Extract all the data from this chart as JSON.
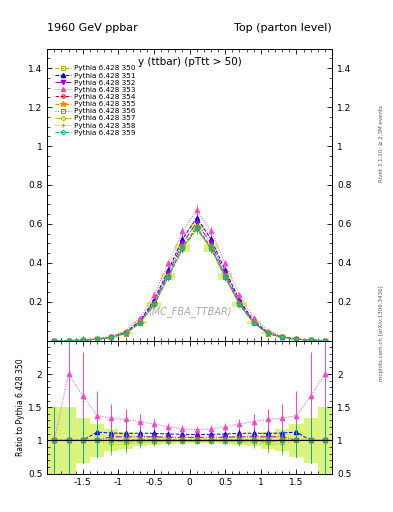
{
  "title_left": "1960 GeV ppbar",
  "title_right": "Top (parton level)",
  "plot_title": "y (ttbar) (pTtt > 50)",
  "watermark": "(MC_FBA_TTBAR)",
  "right_label": "mcplots.cern.ch [arXiv:1306.3436]",
  "rivet_label": "Rivet 3.1.10; ≥ 2.3M events",
  "ylabel_ratio": "Ratio to Pythia 6.428 350",
  "xlim": [
    -2.0,
    2.0
  ],
  "ylim_main": [
    0.0,
    1.5
  ],
  "ylim_ratio": [
    0.5,
    2.5
  ],
  "xbins": [
    -2.0,
    -1.8,
    -1.6,
    -1.4,
    -1.2,
    -1.0,
    -0.8,
    -0.6,
    -0.4,
    -0.2,
    0.0,
    0.2,
    0.4,
    0.6,
    0.8,
    1.0,
    1.2,
    1.4,
    1.6,
    1.8,
    2.0
  ],
  "series": [
    {
      "label": "Pythia 6.428 350",
      "color": "#aaaa00",
      "marker": "s",
      "linestyle": "--",
      "is_reference": true,
      "values": [
        0.001,
        0.001,
        0.003,
        0.008,
        0.018,
        0.038,
        0.092,
        0.188,
        0.33,
        0.478,
        0.58,
        0.478,
        0.33,
        0.188,
        0.092,
        0.038,
        0.018,
        0.008,
        0.003,
        0.001
      ],
      "errors": [
        0.0005,
        0.0005,
        0.001,
        0.002,
        0.003,
        0.005,
        0.008,
        0.012,
        0.016,
        0.02,
        0.022,
        0.02,
        0.016,
        0.012,
        0.008,
        0.005,
        0.003,
        0.002,
        0.001,
        0.0005
      ]
    },
    {
      "label": "Pythia 6.428 351",
      "color": "#0000ff",
      "marker": "^",
      "linestyle": "--",
      "is_reference": false,
      "values": [
        0.001,
        0.001,
        0.003,
        0.009,
        0.02,
        0.042,
        0.102,
        0.208,
        0.362,
        0.522,
        0.632,
        0.522,
        0.362,
        0.208,
        0.102,
        0.042,
        0.02,
        0.009,
        0.003,
        0.001
      ],
      "errors": [
        0.0005,
        0.0005,
        0.001,
        0.002,
        0.003,
        0.005,
        0.009,
        0.013,
        0.017,
        0.022,
        0.024,
        0.022,
        0.017,
        0.013,
        0.009,
        0.005,
        0.003,
        0.002,
        0.001,
        0.0005
      ]
    },
    {
      "label": "Pythia 6.428 352",
      "color": "#9900cc",
      "marker": "v",
      "linestyle": "-.",
      "is_reference": false,
      "values": [
        0.001,
        0.001,
        0.003,
        0.008,
        0.019,
        0.04,
        0.097,
        0.198,
        0.346,
        0.5,
        0.607,
        0.5,
        0.346,
        0.198,
        0.097,
        0.04,
        0.019,
        0.008,
        0.003,
        0.001
      ],
      "errors": [
        0.0005,
        0.0005,
        0.001,
        0.002,
        0.003,
        0.005,
        0.009,
        0.013,
        0.017,
        0.021,
        0.023,
        0.021,
        0.017,
        0.013,
        0.009,
        0.005,
        0.003,
        0.002,
        0.001,
        0.0005
      ]
    },
    {
      "label": "Pythia 6.428 353",
      "color": "#ff44cc",
      "marker": "^",
      "linestyle": ":",
      "is_reference": false,
      "values": [
        0.001,
        0.002,
        0.005,
        0.011,
        0.024,
        0.05,
        0.118,
        0.235,
        0.398,
        0.562,
        0.672,
        0.562,
        0.398,
        0.235,
        0.118,
        0.05,
        0.024,
        0.011,
        0.005,
        0.002
      ],
      "errors": [
        0.0005,
        0.001,
        0.002,
        0.003,
        0.004,
        0.006,
        0.01,
        0.015,
        0.019,
        0.024,
        0.026,
        0.024,
        0.019,
        0.015,
        0.01,
        0.006,
        0.004,
        0.003,
        0.002,
        0.001
      ]
    },
    {
      "label": "Pythia 6.428 354",
      "color": "#cc0000",
      "marker": "o",
      "linestyle": "--",
      "is_reference": false,
      "values": [
        0.001,
        0.001,
        0.003,
        0.008,
        0.018,
        0.038,
        0.093,
        0.189,
        0.332,
        0.48,
        0.582,
        0.48,
        0.332,
        0.189,
        0.093,
        0.038,
        0.018,
        0.008,
        0.003,
        0.001
      ],
      "errors": [
        0.0005,
        0.0005,
        0.001,
        0.002,
        0.003,
        0.005,
        0.008,
        0.012,
        0.016,
        0.02,
        0.022,
        0.02,
        0.016,
        0.012,
        0.008,
        0.005,
        0.003,
        0.002,
        0.001,
        0.0005
      ]
    },
    {
      "label": "Pythia 6.428 355",
      "color": "#ff8800",
      "marker": "*",
      "linestyle": "--",
      "is_reference": false,
      "values": [
        0.001,
        0.001,
        0.003,
        0.008,
        0.018,
        0.038,
        0.093,
        0.19,
        0.333,
        0.481,
        0.583,
        0.481,
        0.333,
        0.19,
        0.093,
        0.038,
        0.018,
        0.008,
        0.003,
        0.001
      ],
      "errors": [
        0.0005,
        0.0005,
        0.001,
        0.002,
        0.003,
        0.005,
        0.008,
        0.012,
        0.016,
        0.02,
        0.022,
        0.02,
        0.016,
        0.012,
        0.008,
        0.005,
        0.003,
        0.002,
        0.001,
        0.0005
      ]
    },
    {
      "label": "Pythia 6.428 356",
      "color": "#888800",
      "marker": "s",
      "linestyle": ":",
      "is_reference": false,
      "values": [
        0.001,
        0.001,
        0.003,
        0.008,
        0.018,
        0.037,
        0.091,
        0.187,
        0.328,
        0.475,
        0.577,
        0.475,
        0.328,
        0.187,
        0.091,
        0.037,
        0.018,
        0.008,
        0.003,
        0.001
      ],
      "errors": [
        0.0005,
        0.0005,
        0.001,
        0.002,
        0.003,
        0.005,
        0.008,
        0.012,
        0.016,
        0.02,
        0.022,
        0.02,
        0.016,
        0.012,
        0.008,
        0.005,
        0.003,
        0.002,
        0.001,
        0.0005
      ]
    },
    {
      "label": "Pythia 6.428 357",
      "color": "#ccaa00",
      "marker": "D",
      "linestyle": "-.",
      "is_reference": false,
      "values": [
        0.001,
        0.001,
        0.003,
        0.008,
        0.018,
        0.037,
        0.091,
        0.186,
        0.327,
        0.473,
        0.576,
        0.473,
        0.327,
        0.186,
        0.091,
        0.037,
        0.018,
        0.008,
        0.003,
        0.001
      ],
      "errors": [
        0.0005,
        0.0005,
        0.001,
        0.002,
        0.003,
        0.005,
        0.008,
        0.012,
        0.016,
        0.02,
        0.022,
        0.02,
        0.016,
        0.012,
        0.008,
        0.005,
        0.003,
        0.002,
        0.001,
        0.0005
      ]
    },
    {
      "label": "Pythia 6.428 358",
      "color": "#88cc00",
      "marker": "+",
      "linestyle": ":",
      "is_reference": false,
      "values": [
        0.001,
        0.001,
        0.003,
        0.008,
        0.017,
        0.036,
        0.089,
        0.183,
        0.323,
        0.469,
        0.57,
        0.469,
        0.323,
        0.183,
        0.089,
        0.036,
        0.017,
        0.008,
        0.003,
        0.001
      ],
      "errors": [
        0.0005,
        0.0005,
        0.001,
        0.002,
        0.003,
        0.005,
        0.008,
        0.012,
        0.016,
        0.02,
        0.022,
        0.02,
        0.016,
        0.012,
        0.008,
        0.005,
        0.003,
        0.002,
        0.001,
        0.0005
      ]
    },
    {
      "label": "Pythia 6.428 359",
      "color": "#00aaaa",
      "marker": "D",
      "linestyle": "--",
      "is_reference": false,
      "values": [
        0.001,
        0.001,
        0.003,
        0.008,
        0.018,
        0.038,
        0.092,
        0.188,
        0.33,
        0.478,
        0.58,
        0.478,
        0.33,
        0.188,
        0.092,
        0.038,
        0.018,
        0.008,
        0.003,
        0.001
      ],
      "errors": [
        0.0005,
        0.0005,
        0.001,
        0.002,
        0.003,
        0.005,
        0.008,
        0.012,
        0.016,
        0.02,
        0.022,
        0.02,
        0.016,
        0.012,
        0.008,
        0.005,
        0.003,
        0.002,
        0.001,
        0.0005
      ]
    }
  ],
  "bg_color": "#ffffff",
  "xticks": [
    -1.5,
    -1.0,
    -0.5,
    0.0,
    0.5,
    1.0,
    1.5
  ],
  "yticks_main": [
    0.2,
    0.4,
    0.6,
    0.8,
    1.0,
    1.2,
    1.4
  ],
  "yticks_ratio": [
    0.5,
    1.0,
    1.5,
    2.0
  ]
}
